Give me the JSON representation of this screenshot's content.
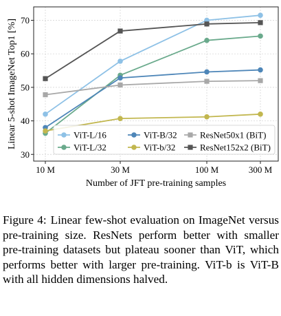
{
  "chart_data": {
    "type": "line",
    "xlabel": "Number of JFT pre-training samples",
    "ylabel": "Linear 5-shot ImageNet Top1 [%]",
    "categories": [
      "10 M",
      "30 M",
      "100 M",
      "300 M"
    ],
    "ylim": [
      28,
      74
    ],
    "yticks": [
      30,
      40,
      50,
      60,
      70
    ],
    "grid": true,
    "legend_position": "lower-right",
    "series": [
      {
        "name": "ViT-L/16",
        "color": "#8ec1e6",
        "marker": "circle",
        "values": [
          42.0,
          57.8,
          70.0,
          71.5
        ]
      },
      {
        "name": "ViT-L/32",
        "color": "#6aaa8c",
        "marker": "circle",
        "values": [
          36.3,
          53.6,
          64.0,
          65.3
        ]
      },
      {
        "name": "ViT-B/32",
        "color": "#4e86b8",
        "marker": "circle",
        "values": [
          38.0,
          52.8,
          54.6,
          55.2
        ]
      },
      {
        "name": "ViT-b/32",
        "color": "#c2b74f",
        "marker": "circle",
        "values": [
          37.0,
          40.7,
          41.2,
          42.0
        ]
      },
      {
        "name": "ResNet50x1 (BiT)",
        "color": "#a8a8a8",
        "marker": "square",
        "values": [
          47.8,
          50.7,
          51.8,
          52.0
        ]
      },
      {
        "name": "ResNet152x2 (BiT)",
        "color": "#555555",
        "marker": "square",
        "values": [
          52.6,
          66.8,
          68.9,
          69.3
        ]
      }
    ]
  },
  "caption": {
    "label": "Figure 4:",
    "text": "Linear few-shot evaluation on ImageNet versus pre-training size. ResNets perform better with smaller pre-training datasets but plateau sooner than ViT, which performs better with larger pre-training. ViT-b is ViT-B with all hidden dimensions halved."
  }
}
